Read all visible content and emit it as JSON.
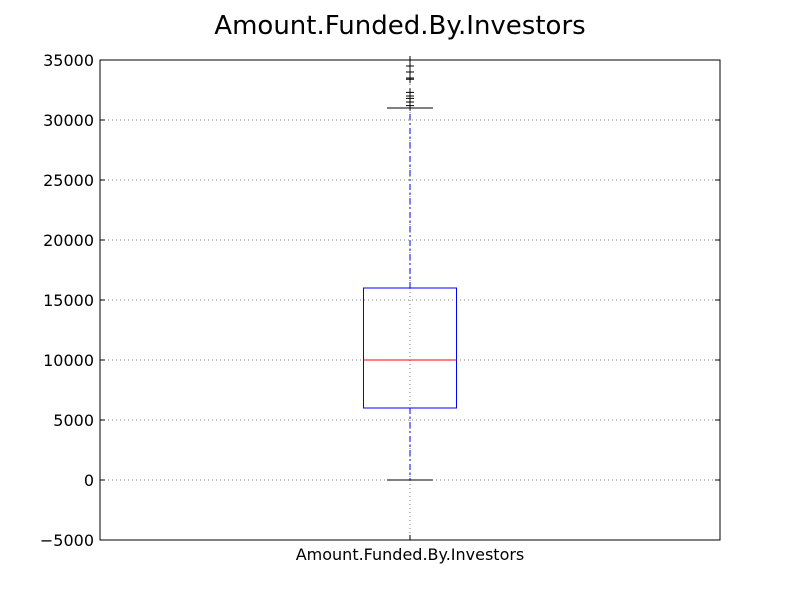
{
  "chart_data": {
    "type": "box",
    "title": "Amount.Funded.By.Investors",
    "xlabel": "",
    "ylabel": "",
    "categories": [
      "Amount.Funded.By.Investors"
    ],
    "ylim": [
      -5000,
      35000
    ],
    "yticks": [
      -5000,
      0,
      5000,
      10000,
      15000,
      20000,
      25000,
      30000,
      35000
    ],
    "ytick_labels": [
      "−5000",
      "0",
      "5000",
      "10000",
      "15000",
      "20000",
      "25000",
      "30000",
      "35000"
    ],
    "grid": true,
    "boxes": [
      {
        "category": "Amount.Funded.By.Investors",
        "whisker_low": 0,
        "q1": 6000,
        "median": 10000,
        "q3": 16000,
        "whisker_high": 31000,
        "outliers": [
          31200,
          31500,
          31800,
          32000,
          32300,
          33400,
          33500,
          34000,
          34500,
          35000
        ]
      }
    ],
    "colors": {
      "box": "#0000ff",
      "median": "#ff0000",
      "whisker": "#0000ff",
      "cap": "#000000",
      "outlier": "#000000",
      "grid": "#808080",
      "axis": "#000000"
    }
  }
}
